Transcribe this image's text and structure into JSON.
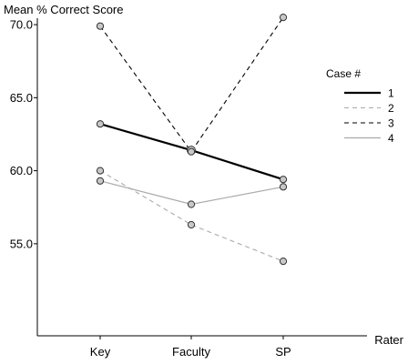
{
  "chart_data": {
    "type": "line",
    "title": "",
    "ylabel": "Mean % Correct Score",
    "xlabel": "Rater",
    "categories": [
      "Key",
      "Faculty",
      "SP"
    ],
    "ylim": [
      50.0,
      73.0
    ],
    "yticks": [
      "55.0",
      "60.0",
      "65.0",
      "70.0"
    ],
    "grid": false,
    "legend": {
      "title": "Case #",
      "placement": "right"
    },
    "series": [
      {
        "name": "1",
        "values": [
          63.2,
          61.4,
          59.4
        ],
        "color": "#000000",
        "style": "solid-thick"
      },
      {
        "name": "2",
        "values": [
          60.0,
          56.3,
          53.8
        ],
        "color": "#aaaaaa",
        "style": "dashed-gray"
      },
      {
        "name": "3",
        "values": [
          69.9,
          61.3,
          70.5
        ],
        "color": "#000000",
        "style": "dashed-black"
      },
      {
        "name": "4",
        "values": [
          59.3,
          57.7,
          58.9
        ],
        "color": "#aaaaaa",
        "style": "solid-thin-gray"
      }
    ],
    "marker_fill": "#c8c8c8"
  }
}
